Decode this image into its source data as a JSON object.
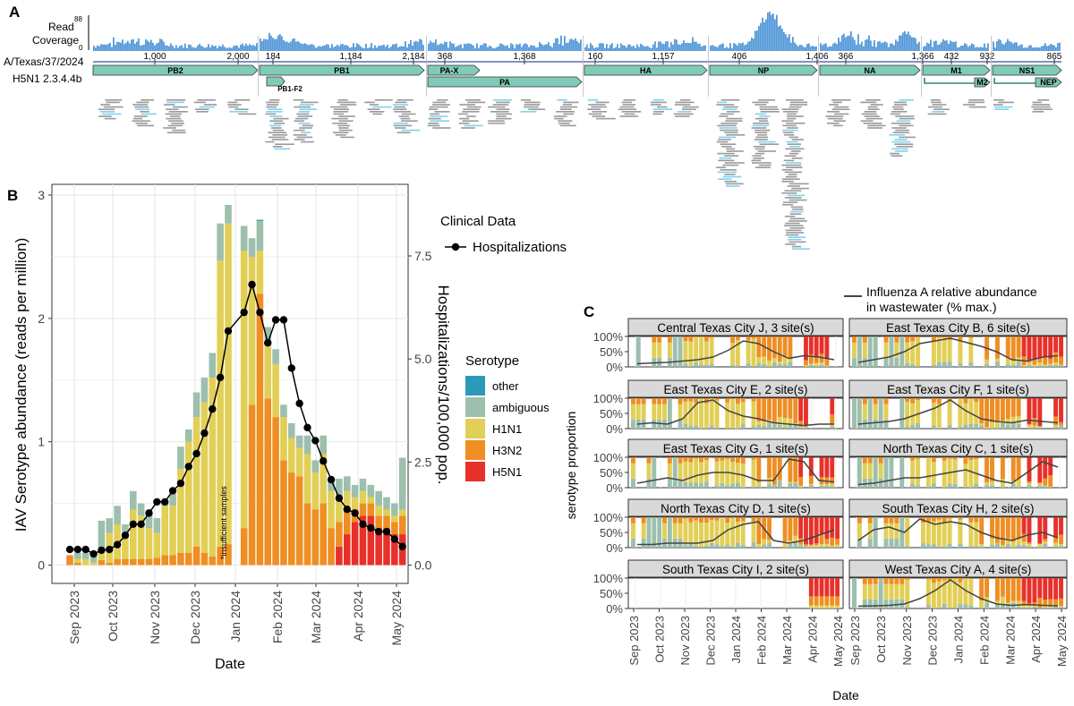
{
  "panel_labels": {
    "a": "A",
    "b": "B",
    "c": "C"
  },
  "colors": {
    "other": "#2b9ab9",
    "ambiguous": "#9dbfad",
    "H1N1": "#e2cf56",
    "H3N2": "#ee8e23",
    "H5N1": "#e8302a",
    "gene_fill": "#7fcbb8",
    "coverage": "#5599d8",
    "reads": "#999999",
    "reads_hl": "#7fd3f0"
  },
  "panel_a": {
    "coverage_label_1": "Read",
    "coverage_label_2": "Coverage",
    "coverage_max": "88",
    "coverage_min": "0",
    "strain_label_1": "A/Texas/37/2024",
    "strain_label_2": "H5N1 2.3.4.4b",
    "genes": [
      {
        "name": "PB2",
        "ticks": [
          "1,000",
          "2,000"
        ]
      },
      {
        "name": "PB1",
        "ticks": [
          "184",
          "1,184",
          "2,184"
        ],
        "sub": "PB1-F2"
      },
      {
        "name": "PA",
        "ticks": [
          "368",
          "1,368"
        ],
        "sub": "PA-X"
      },
      {
        "name": "HA",
        "ticks": [
          "160",
          "1,157"
        ]
      },
      {
        "name": "NP",
        "ticks": [
          "406",
          "1,406"
        ]
      },
      {
        "name": "NA",
        "ticks": [
          "366",
          "1,366"
        ]
      },
      {
        "name": "M1",
        "ticks": [
          "432",
          "932"
        ],
        "sub": "M2"
      },
      {
        "name": "NS1",
        "ticks": [
          "865"
        ],
        "sub": "NEP"
      }
    ]
  },
  "panel_b": {
    "ylabel_left": "IAV Serotype abundance (reads per million)",
    "ylabel_right": "Hospitalizations/100,000 pop.",
    "xlabel": "Date",
    "annotation": "*insufficient samples",
    "legend_clinical_title": "Clinical Data",
    "legend_clinical_item": "Hospitalizations",
    "legend_serotype_title": "Serotype",
    "legend_serotype_items": [
      "other",
      "ambiguous",
      "H1N1",
      "H3N2",
      "H5N1"
    ]
  },
  "panel_c": {
    "legend_text_1": "Influenza A relative abundance",
    "legend_text_2": "in wastewater (% max.)",
    "ylabel": "serotype proportion",
    "xlabel": "Date",
    "ytick_labels": [
      "100%",
      "50%",
      "0%"
    ],
    "facets": [
      "Central Texas City J, 3 site(s)",
      "East Texas City B, 6 site(s)",
      "East Texas City E, 2 site(s)",
      "East Texas City F, 1 site(s)",
      "East Texas City G, 1 site(s)",
      "North Texas City C, 1 site(s)",
      "North Texas City D, 1 site(s)",
      "South Texas City H, 2 site(s)",
      "South Texas City I, 2 site(s)",
      "West Texas City A, 4 site(s)"
    ]
  },
  "chart_data": {
    "type": "bar",
    "stacked": true,
    "x_tick_labels": [
      "Sep 2023",
      "Oct 2023",
      "Nov 2023",
      "Dec 2023",
      "Jan 2024",
      "Feb 2024",
      "Mar 2024",
      "Apr 2024",
      "May 2024"
    ],
    "y_left_ticks": [
      "0",
      "1",
      "2",
      "3"
    ],
    "y_right_ticks": [
      "0.0",
      "2.5",
      "5.0",
      "7.5"
    ],
    "y_left_range": [
      0,
      3.1
    ],
    "y_right_range": [
      0,
      10.3
    ],
    "weeks": [
      {
        "other": 0,
        "ambiguous": 0,
        "H1N1": 0,
        "H3N2": 0.08,
        "H5N1": 0,
        "hosp": 0.42
      },
      {
        "other": 0,
        "ambiguous": 0.05,
        "H1N1": 0.03,
        "H3N2": 0.02,
        "H5N1": 0,
        "hosp": 0.42
      },
      {
        "other": 0,
        "ambiguous": 0.05,
        "H1N1": 0.05,
        "H3N2": 0,
        "H5N1": 0,
        "hosp": 0.42
      },
      {
        "other": 0,
        "ambiguous": 0.08,
        "H1N1": 0.02,
        "H3N2": 0,
        "H5N1": 0,
        "hosp": 0.3
      },
      {
        "other": 0,
        "ambiguous": 0.22,
        "H1N1": 0.1,
        "H3N2": 0.04,
        "H5N1": 0,
        "hosp": 0.4
      },
      {
        "other": 0,
        "ambiguous": 0.12,
        "H1N1": 0.24,
        "H3N2": 0.02,
        "H5N1": 0,
        "hosp": 0.42
      },
      {
        "other": 0,
        "ambiguous": 0.15,
        "H1N1": 0.28,
        "H3N2": 0.05,
        "H5N1": 0,
        "hosp": 0.55
      },
      {
        "other": 0,
        "ambiguous": 0.1,
        "H1N1": 0.18,
        "H3N2": 0.05,
        "H5N1": 0,
        "hosp": 0.8
      },
      {
        "other": 0,
        "ambiguous": 0.15,
        "H1N1": 0.4,
        "H3N2": 0.05,
        "H5N1": 0,
        "hosp": 1.1
      },
      {
        "other": 0,
        "ambiguous": 0.1,
        "H1N1": 0.35,
        "H3N2": 0.05,
        "H5N1": 0,
        "hosp": 1.1
      },
      {
        "other": 0,
        "ambiguous": 0.12,
        "H1N1": 0.25,
        "H3N2": 0.05,
        "H5N1": 0,
        "hosp": 1.4
      },
      {
        "other": 0,
        "ambiguous": 0.12,
        "H1N1": 0.2,
        "H3N2": 0.06,
        "H5N1": 0,
        "hosp": 1.7
      },
      {
        "other": 0,
        "ambiguous": 0.05,
        "H1N1": 0.4,
        "H3N2": 0.08,
        "H5N1": 0,
        "hosp": 1.7
      },
      {
        "other": 0,
        "ambiguous": 0.1,
        "H1N1": 0.4,
        "H3N2": 0.08,
        "H5N1": 0,
        "hosp": 2.0
      },
      {
        "other": 0,
        "ambiguous": 0.18,
        "H1N1": 0.68,
        "H3N2": 0.1,
        "H5N1": 0,
        "hosp": 2.2
      },
      {
        "other": 0,
        "ambiguous": 0.1,
        "H1N1": 0.9,
        "H3N2": 0.1,
        "H5N1": 0,
        "hosp": 2.65
      },
      {
        "other": 0,
        "ambiguous": 0.2,
        "H1N1": 1.05,
        "H3N2": 0.15,
        "H5N1": 0,
        "hosp": 3.0
      },
      {
        "other": 0,
        "ambiguous": 0.2,
        "H1N1": 1.22,
        "H3N2": 0.1,
        "H5N1": 0,
        "hosp": 3.55
      },
      {
        "other": 0,
        "ambiguous": 0.2,
        "H1N1": 1.45,
        "H3N2": 0.07,
        "H5N1": 0,
        "hosp": 4.2
      },
      {
        "other": 0,
        "ambiguous": 0.3,
        "H1N1": 2.32,
        "H3N2": 0.15,
        "H5N1": 0,
        "hosp": 5.05
      },
      {
        "other": 0,
        "ambiguous": 0.15,
        "H1N1": 2.6,
        "H3N2": 0.17,
        "H5N1": 0,
        "hosp": 6.3
      },
      null,
      {
        "other": 0,
        "ambiguous": 0.2,
        "H1N1": 2.25,
        "H3N2": 0.3,
        "H5N1": 0,
        "hosp": 6.8
      },
      {
        "other": 0,
        "ambiguous": 0.15,
        "H1N1": 1.2,
        "H3N2": 1.3,
        "H5N1": 0,
        "hosp": 7.55
      },
      {
        "other": 0.01,
        "ambiguous": 0.24,
        "H1N1": 0.35,
        "H3N2": 2.2,
        "H5N1": 0,
        "hosp": 6.8
      },
      {
        "other": 0,
        "ambiguous": 0.11,
        "H1N1": 0.47,
        "H3N2": 1.35,
        "H5N1": 0,
        "hosp": 5.98
      },
      {
        "other": 0,
        "ambiguous": 0.12,
        "H1N1": 0.43,
        "H3N2": 1.2,
        "H5N1": 0,
        "hosp": 6.6
      },
      {
        "other": 0,
        "ambiguous": 0.1,
        "H1N1": 0.35,
        "H3N2": 0.85,
        "H5N1": 0,
        "hosp": 6.6
      },
      {
        "other": 0,
        "ambiguous": 0.12,
        "H1N1": 0.28,
        "H3N2": 0.75,
        "H5N1": 0,
        "hosp": 5.3
      },
      {
        "other": 0,
        "ambiguous": 0.1,
        "H1N1": 0.23,
        "H3N2": 0.72,
        "H5N1": 0,
        "hosp": 4.35
      },
      {
        "other": 0,
        "ambiguous": 0.15,
        "H1N1": 0.4,
        "H3N2": 0.5,
        "H5N1": 0,
        "hosp": 3.7
      },
      {
        "other": 0,
        "ambiguous": 0.1,
        "H1N1": 0.3,
        "H3N2": 0.45,
        "H5N1": 0,
        "hosp": 3.35
      },
      {
        "other": 0,
        "ambiguous": 0.15,
        "H1N1": 0.4,
        "H3N2": 0.5,
        "H5N1": 0,
        "hosp": 2.8
      },
      {
        "other": 0,
        "ambiguous": 0.1,
        "H1N1": 0.3,
        "H3N2": 0.3,
        "H5N1": 0,
        "hosp": 2.3
      },
      {
        "other": 0,
        "ambiguous": 0.15,
        "H1N1": 0.2,
        "H3N2": 0.2,
        "H5N1": 0.15,
        "hosp": 1.8
      },
      {
        "other": 0,
        "ambiguous": 0.12,
        "H1N1": 0.15,
        "H3N2": 0.2,
        "H5N1": 0.25,
        "hosp": 1.5
      },
      {
        "other": 0,
        "ambiguous": 0.1,
        "H1N1": 0.1,
        "H3N2": 0.1,
        "H5N1": 0.35,
        "hosp": 1.4
      },
      {
        "other": 0,
        "ambiguous": 0.1,
        "H1N1": 0.1,
        "H3N2": 0.1,
        "H5N1": 0.4,
        "hosp": 1.1
      },
      {
        "other": 0,
        "ambiguous": 0.1,
        "H1N1": 0.05,
        "H3N2": 0.1,
        "H5N1": 0.4,
        "hosp": 1.0
      },
      {
        "other": 0,
        "ambiguous": 0.12,
        "H1N1": 0.08,
        "H3N2": 0.1,
        "H5N1": 0.3,
        "hosp": 0.9
      },
      {
        "other": 0,
        "ambiguous": 0.1,
        "H1N1": 0.05,
        "H3N2": 0.1,
        "H5N1": 0.3,
        "hosp": 0.9
      },
      {
        "other": 0,
        "ambiguous": 0.1,
        "H1N1": 0.05,
        "H3N2": 0.1,
        "H5N1": 0.25,
        "hosp": 0.7
      },
      {
        "other": 0,
        "ambiguous": 0.42,
        "H1N1": 0.05,
        "H3N2": 0.15,
        "H5N1": 0.25,
        "hosp": 0.5
      }
    ]
  }
}
